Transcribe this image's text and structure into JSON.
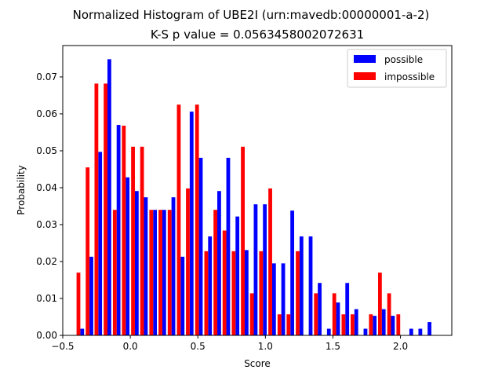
{
  "chart_data": {
    "type": "bar",
    "title": "Normalized Histogram of UBE2I (urn:mavedb:00000001-a-2)",
    "subtitle": "K-S p value = 0.0563458002072631",
    "xlabel": "Score",
    "ylabel": "Probability",
    "xlim": [
      -0.5,
      2.38
    ],
    "ylim": [
      0.0,
      0.0785
    ],
    "xticks": [
      -0.5,
      0.0,
      0.5,
      1.0,
      1.5,
      2.0
    ],
    "xtick_labels": [
      "−0.5",
      "0.0",
      "0.5",
      "1.0",
      "1.5",
      "2.0"
    ],
    "yticks": [
      0.0,
      0.01,
      0.02,
      0.03,
      0.04,
      0.05,
      0.06,
      0.07
    ],
    "ytick_labels": [
      "0.00",
      "0.01",
      "0.02",
      "0.03",
      "0.04",
      "0.05",
      "0.06",
      "0.07"
    ],
    "grid": false,
    "legend_position": "top-right",
    "x": [
      -0.37,
      -0.302,
      -0.237,
      -0.169,
      -0.101,
      -0.034,
      0.034,
      0.101,
      0.169,
      0.237,
      0.305,
      0.373,
      0.44,
      0.508,
      0.576,
      0.644,
      0.711,
      0.779,
      0.847,
      0.914,
      0.982,
      1.05,
      1.118,
      1.185,
      1.253,
      1.321,
      1.388,
      1.456,
      1.524,
      1.592,
      1.659,
      1.727,
      1.795,
      1.862,
      1.93,
      1.998,
      2.066,
      2.133,
      2.201
    ],
    "series": [
      {
        "name": "possible",
        "color": "#0000ff",
        "values": [
          0.0018,
          0.0213,
          0.0497,
          0.0748,
          0.057,
          0.0428,
          0.0391,
          0.0374,
          0.034,
          0.034,
          0.0374,
          0.0213,
          0.0606,
          0.0481,
          0.0268,
          0.0391,
          0.0481,
          0.0322,
          0.0231,
          0.0355,
          0.0355,
          0.0195,
          0.0195,
          0.0338,
          0.0268,
          0.0268,
          0.0142,
          0.0018,
          0.0089,
          0.0142,
          0.0071,
          0.0018,
          0.0053,
          0.0071,
          0.0053,
          0.0,
          0.0018,
          0.0018,
          0.0036
        ]
      },
      {
        "name": "impossible",
        "color": "#ff0000",
        "values": [
          0.017,
          0.0455,
          0.0682,
          0.0682,
          0.034,
          0.0568,
          0.0511,
          0.0511,
          0.034,
          0.034,
          0.034,
          0.0625,
          0.0398,
          0.0625,
          0.0228,
          0.034,
          0.0284,
          0.0228,
          0.0511,
          0.0114,
          0.0228,
          0.0398,
          0.0057,
          0.0057,
          0.0228,
          0.0,
          0.0114,
          0.0,
          0.0114,
          0.0057,
          0.0057,
          0.0,
          0.0057,
          0.017,
          0.0114,
          0.0057,
          0.0,
          0.0,
          0.0
        ]
      }
    ]
  }
}
